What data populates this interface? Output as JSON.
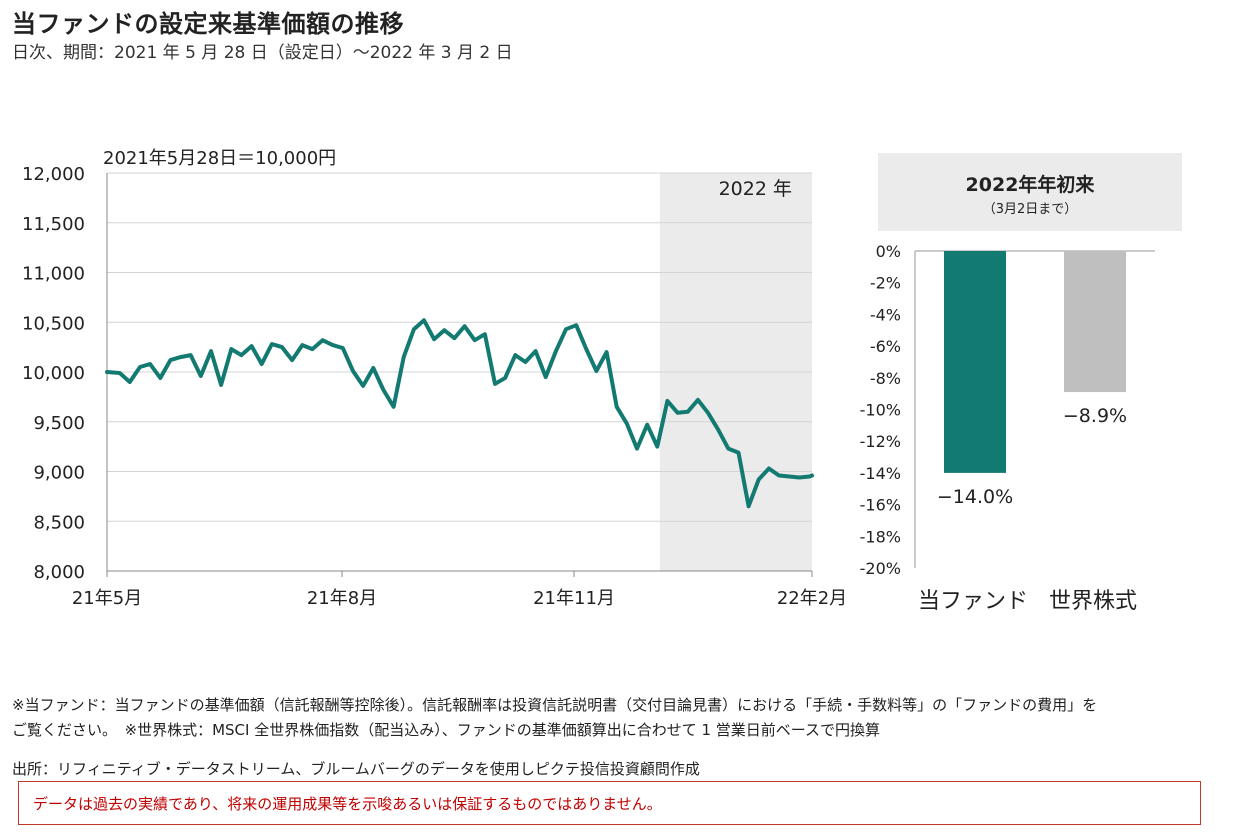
{
  "header": {
    "title": "当ファンドの設定来基準価額の推移",
    "subtitle": "日次、期間：2021 年 5 月 28 日（設定日）～2022 年 3 月 2 日"
  },
  "chart_data": [
    {
      "type": "line",
      "title": "",
      "annotation": "2021年5月28日＝10,000円",
      "shaded_region_label": "2022 年",
      "shaded_region": [
        "2022-01-01",
        "2022-03-02"
      ],
      "xlim": [
        "2021-05-28",
        "2022-03-02"
      ],
      "x_tick_labels": [
        "21年5月",
        "21年8月",
        "21年11月",
        "22年2月"
      ],
      "ylim": [
        8000,
        12000
      ],
      "y_tick_labels": [
        "8,000",
        "8,500",
        "9,000",
        "9,500",
        "10,000",
        "10,500",
        "11,000",
        "11,500",
        "12,000"
      ],
      "grid": true,
      "series": [
        {
          "color": "#137a72",
          "x": [
            "2021-05-28",
            "2021-06-02",
            "2021-06-06",
            "2021-06-10",
            "2021-06-14",
            "2021-06-18",
            "2021-06-22",
            "2021-06-26",
            "2021-06-30",
            "2021-07-04",
            "2021-07-08",
            "2021-07-12",
            "2021-07-16",
            "2021-07-20",
            "2021-07-24",
            "2021-07-28",
            "2021-08-01",
            "2021-08-05",
            "2021-08-09",
            "2021-08-13",
            "2021-08-17",
            "2021-08-21",
            "2021-08-25",
            "2021-08-29",
            "2021-09-02",
            "2021-09-06",
            "2021-09-10",
            "2021-09-14",
            "2021-09-18",
            "2021-09-22",
            "2021-09-26",
            "2021-09-30",
            "2021-10-04",
            "2021-10-08",
            "2021-10-12",
            "2021-10-16",
            "2021-10-20",
            "2021-10-24",
            "2021-10-28",
            "2021-11-01",
            "2021-11-05",
            "2021-11-09",
            "2021-11-13",
            "2021-11-17",
            "2021-11-21",
            "2021-11-25",
            "2021-11-29",
            "2021-12-03",
            "2021-12-07",
            "2021-12-11",
            "2021-12-15",
            "2021-12-19",
            "2021-12-23",
            "2021-12-27",
            "2021-12-31",
            "2022-01-04",
            "2022-01-08",
            "2022-01-12",
            "2022-01-16",
            "2022-01-20",
            "2022-01-24",
            "2022-01-28",
            "2022-02-01",
            "2022-02-05",
            "2022-02-09",
            "2022-02-13",
            "2022-02-17",
            "2022-02-21",
            "2022-02-25",
            "2022-03-01",
            "2022-03-02"
          ],
          "values": [
            10000,
            9990,
            9900,
            10050,
            10080,
            9940,
            10120,
            10150,
            10170,
            9960,
            10210,
            9870,
            10230,
            10170,
            10260,
            10080,
            10280,
            10250,
            10120,
            10270,
            10230,
            10320,
            10270,
            10240,
            10010,
            9860,
            10040,
            9820,
            9650,
            10150,
            10430,
            10520,
            10330,
            10420,
            10340,
            10460,
            10320,
            10380,
            9880,
            9940,
            10170,
            10100,
            10210,
            9950,
            10210,
            10430,
            10470,
            10230,
            10010,
            10200,
            9650,
            9480,
            9230,
            9470,
            9250,
            9710,
            9590,
            9600,
            9720,
            9590,
            9420,
            9230,
            9190,
            8650,
            8920,
            9030,
            8960,
            8950,
            8940,
            8950,
            8960
          ]
        }
      ]
    },
    {
      "type": "bar",
      "title": "2022年年初来",
      "subtitle": "（3月2日まで）",
      "categories": [
        "当ファンド",
        "世界株式"
      ],
      "values": [
        -14.0,
        -8.9
      ],
      "value_labels": [
        "−14.0%",
        "−8.9%"
      ],
      "colors": [
        "#137a72",
        "#bfbfbf"
      ],
      "ylim": [
        -20,
        0
      ],
      "y_tick_labels": [
        "0%",
        "-2%",
        "-4%",
        "-6%",
        "-8%",
        "-10%",
        "-12%",
        "-14%",
        "-16%",
        "-18%",
        "-20%"
      ]
    }
  ],
  "notes": {
    "line1": "※当ファンド：当ファンドの基準価額（信託報酬等控除後）。信託報酬率は投資信託説明書（交付目論見書）における「手続・手数料等」の「ファンドの費用」を",
    "line2": "ご覧ください。　※世界株式：MSCI 全世界株価指数（配当込み）、ファンドの基準価額算出に合わせて 1 営業日前ベースで円換算",
    "source": "出所：リフィニティブ・データストリーム、ブルームバーグのデータを使用しピクテ投信投資顧問作成",
    "disclaimer": "データは過去の実績であり、将来の運用成果等を示唆あるいは保証するものではありません。"
  }
}
